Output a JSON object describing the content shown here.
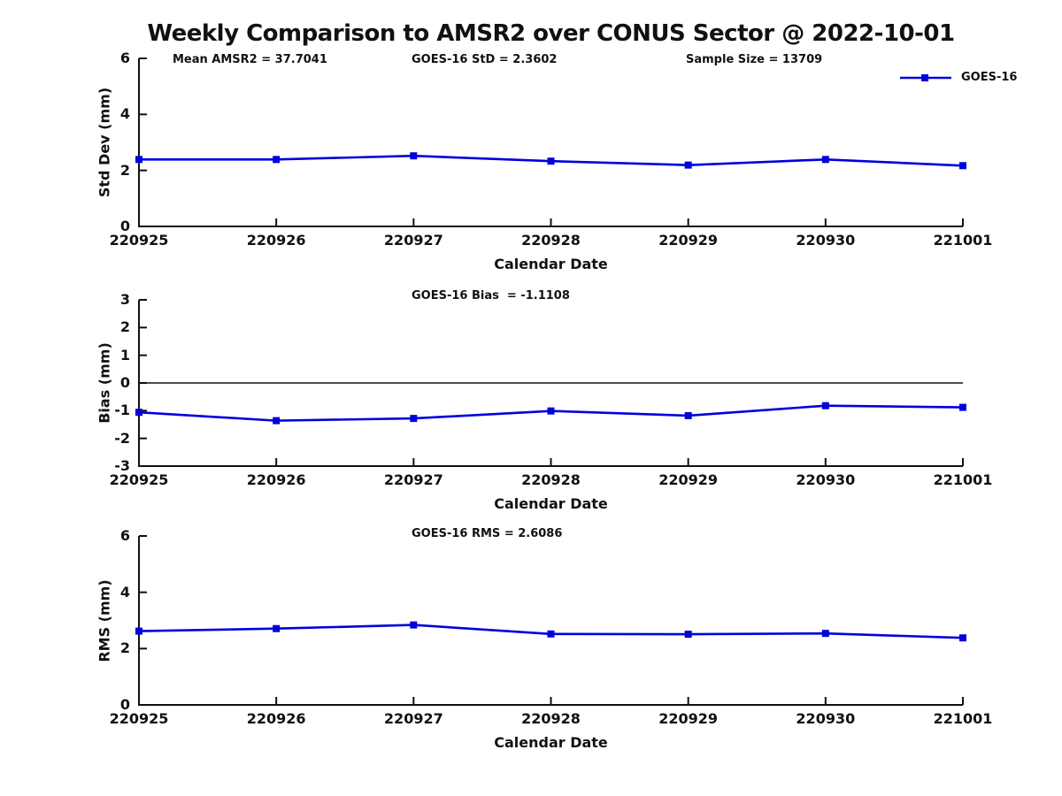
{
  "title": "Weekly Comparison to AMSR2 over CONUS Sector @ 2022-10-01",
  "colors": {
    "series": "#0000dd",
    "axis": "#111111",
    "text": "#111111"
  },
  "legend": {
    "label": "GOES-16"
  },
  "x_label": "Calendar Date",
  "categories": [
    "220925",
    "220926",
    "220927",
    "220928",
    "220929",
    "220930",
    "221001"
  ],
  "chart_data": [
    {
      "type": "line",
      "name": "std-dev",
      "ylabel": "Std Dev (mm)",
      "xlabel": "Calendar Date",
      "x": [
        "220925",
        "220926",
        "220927",
        "220928",
        "220929",
        "220930",
        "221001"
      ],
      "series": [
        {
          "name": "GOES-16",
          "values": [
            2.39,
            2.39,
            2.52,
            2.33,
            2.19,
            2.39,
            2.17
          ]
        }
      ],
      "ylim": [
        0,
        6
      ],
      "yticks": [
        "0",
        "2",
        "4",
        "6"
      ],
      "grid": false,
      "legend_position": "top-right-outside",
      "annotations": [
        "Mean AMSR2 = 37.7041",
        "GOES-16 StD = 2.3602",
        "Sample Size = 13709"
      ]
    },
    {
      "type": "line",
      "name": "bias",
      "ylabel": "Bias (mm)",
      "xlabel": "Calendar Date",
      "x": [
        "220925",
        "220926",
        "220927",
        "220928",
        "220929",
        "220930",
        "221001"
      ],
      "series": [
        {
          "name": "GOES-16",
          "values": [
            -1.06,
            -1.36,
            -1.28,
            -1.01,
            -1.18,
            -0.82,
            -0.88
          ]
        }
      ],
      "ylim": [
        -3,
        3
      ],
      "yticks": [
        "3",
        "2",
        "1",
        "0",
        "-1",
        "-2",
        "-3"
      ],
      "zero_line": true,
      "grid": false,
      "annotations": [
        "GOES-16 Bias  = -1.1108"
      ]
    },
    {
      "type": "line",
      "name": "rms",
      "ylabel": "RMS (mm)",
      "xlabel": "Calendar Date",
      "x": [
        "220925",
        "220926",
        "220927",
        "220928",
        "220929",
        "220930",
        "221001"
      ],
      "series": [
        {
          "name": "GOES-16",
          "values": [
            2.62,
            2.71,
            2.84,
            2.52,
            2.51,
            2.54,
            2.38
          ]
        }
      ],
      "ylim": [
        0,
        6
      ],
      "yticks": [
        "0",
        "2",
        "4",
        "6"
      ],
      "grid": false,
      "annotations": [
        "GOES-16 RMS = 2.6086"
      ]
    }
  ]
}
